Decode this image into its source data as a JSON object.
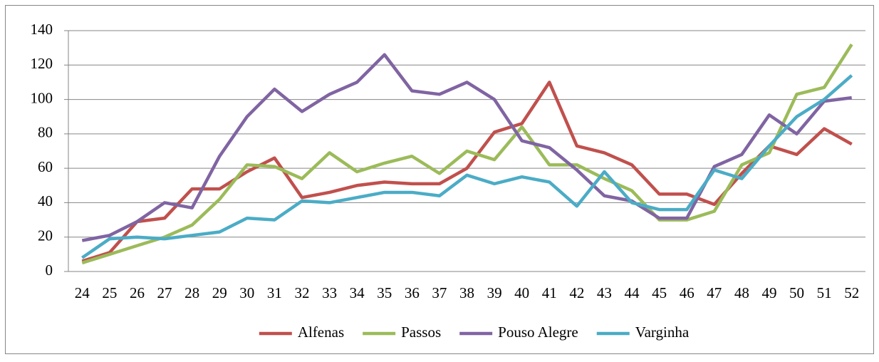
{
  "chart_data": {
    "type": "line",
    "categories": [
      "24",
      "25",
      "26",
      "27",
      "28",
      "29",
      "30",
      "31",
      "32",
      "33",
      "34",
      "35",
      "36",
      "37",
      "38",
      "39",
      "40",
      "41",
      "42",
      "43",
      "44",
      "45",
      "46",
      "47",
      "48",
      "49",
      "50",
      "51",
      "52"
    ],
    "series": [
      {
        "name": "Alfenas",
        "color": "#c0504d",
        "values": [
          6,
          11,
          29,
          31,
          48,
          48,
          58,
          66,
          43,
          46,
          50,
          52,
          51,
          51,
          60,
          81,
          86,
          110,
          73,
          69,
          62,
          45,
          45,
          39,
          57,
          73,
          68,
          83,
          74
        ]
      },
      {
        "name": "Passos",
        "color": "#9bbb59",
        "values": [
          5,
          10,
          15,
          20,
          27,
          42,
          62,
          61,
          54,
          69,
          58,
          63,
          67,
          57,
          70,
          65,
          84,
          62,
          62,
          54,
          47,
          30,
          30,
          35,
          62,
          69,
          103,
          107,
          132
        ]
      },
      {
        "name": "Pouso Alegre",
        "color": "#8064a2",
        "values": [
          18,
          21,
          29,
          40,
          37,
          67,
          90,
          106,
          93,
          103,
          110,
          126,
          105,
          103,
          110,
          100,
          76,
          72,
          59,
          44,
          41,
          31,
          31,
          61,
          68,
          91,
          80,
          99,
          101
        ]
      },
      {
        "name": "Varginha",
        "color": "#4bacc6",
        "values": [
          8,
          19,
          20,
          19,
          21,
          23,
          31,
          30,
          41,
          40,
          43,
          46,
          46,
          44,
          56,
          51,
          55,
          52,
          38,
          58,
          40,
          36,
          36,
          59,
          54,
          73,
          90,
          100,
          114
        ]
      }
    ],
    "ylim": [
      0,
      140
    ],
    "yticks": [
      0,
      20,
      40,
      60,
      80,
      100,
      120,
      140
    ],
    "grid": true,
    "legend": "bottom"
  }
}
